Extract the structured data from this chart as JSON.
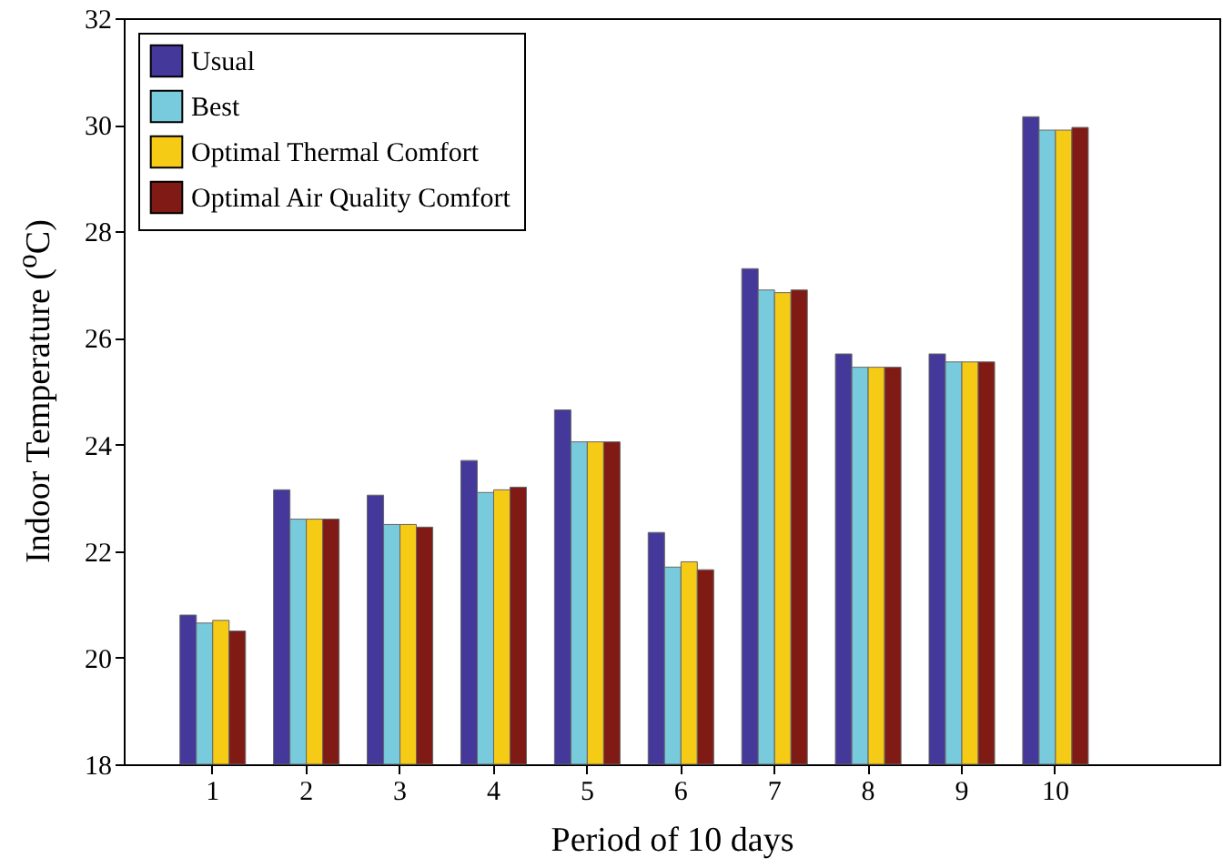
{
  "chart_data": {
    "type": "bar",
    "xlabel": "Period of 10 days",
    "ylabel": "Indoor Temperature ($^{o}$C)",
    "categories": [
      "1",
      "2",
      "3",
      "4",
      "5",
      "6",
      "7",
      "8",
      "9",
      "10"
    ],
    "series": [
      {
        "name": "Usual",
        "color": "#44399b",
        "values": [
          20.8,
          23.15,
          23.05,
          23.7,
          24.65,
          22.35,
          27.3,
          25.7,
          25.7,
          30.15
        ]
      },
      {
        "name": "Best",
        "color": "#78cbdc",
        "values": [
          20.65,
          22.6,
          22.5,
          23.1,
          24.05,
          21.7,
          26.9,
          25.45,
          25.55,
          29.9
        ]
      },
      {
        "name": "Optimal Thermal Comfort",
        "color": "#f6cb15",
        "values": [
          20.7,
          22.6,
          22.5,
          23.15,
          24.05,
          21.8,
          26.85,
          25.45,
          25.55,
          29.9
        ]
      },
      {
        "name": "Optimal Air Quality Comfort",
        "color": "#801a15",
        "values": [
          20.5,
          22.6,
          22.45,
          23.2,
          24.05,
          21.65,
          26.9,
          25.45,
          25.55,
          29.95
        ]
      }
    ],
    "ylim": [
      18,
      32
    ],
    "yticks": [
      18,
      20,
      22,
      24,
      26,
      28,
      30,
      32
    ],
    "legend": "top left"
  }
}
